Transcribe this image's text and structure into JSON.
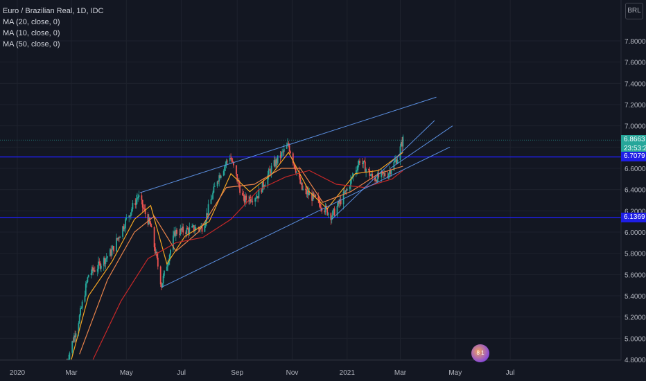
{
  "legend": {
    "title": "Euro / Brazilian Real, 1D, IDC",
    "ma20": "MA (20, close, 0)",
    "ma10": "MA (10, close, 0)",
    "ma50": "MA (50, close, 0)"
  },
  "currency_button": "BRL",
  "price_tags": {
    "last": "6.8663",
    "countdown": "23:53:23",
    "line1": "6.7079",
    "line2": "6.1369"
  },
  "logo_text": "8 1",
  "colors": {
    "background": "#131722",
    "up": "#26a69a",
    "down": "#ef5350",
    "ma_orange": "#f5a623",
    "ma_red": "#c62828",
    "trendline": "#5b8fe0",
    "hline": "#1e1ee6",
    "last_price": "#26a69a"
  },
  "chart_data": {
    "type": "candlestick",
    "yaxis_ticks": [
      "7.8000",
      "7.6000",
      "7.4000",
      "7.2000",
      "7.0000",
      "6.8000",
      "6.6000",
      "6.4000",
      "6.2000",
      "6.0000",
      "5.8000",
      "5.6000",
      "5.4000",
      "5.2000",
      "5.0000",
      "4.8000"
    ],
    "xaxis_ticks": [
      "2020",
      "Mar",
      "May",
      "Jul",
      "Sep",
      "Nov",
      "2021",
      "Mar",
      "May",
      "Jul"
    ],
    "ylim": [
      4.8,
      7.9
    ],
    "horizontal_lines": [
      6.7079,
      6.1369
    ],
    "last_price": 6.8663,
    "close_path": [
      {
        "date": "2020-02-25",
        "value": 4.78
      },
      {
        "date": "2020-03-10",
        "value": 5.2
      },
      {
        "date": "2020-03-20",
        "value": 5.6
      },
      {
        "date": "2020-03-31",
        "value": 5.68
      },
      {
        "date": "2020-04-15",
        "value": 5.82
      },
      {
        "date": "2020-04-30",
        "value": 6.1
      },
      {
        "date": "2020-05-14",
        "value": 6.34
      },
      {
        "date": "2020-05-28",
        "value": 6.05
      },
      {
        "date": "2020-06-09",
        "value": 5.5
      },
      {
        "date": "2020-06-24",
        "value": 6.0
      },
      {
        "date": "2020-07-10",
        "value": 6.02
      },
      {
        "date": "2020-07-25",
        "value": 6.05
      },
      {
        "date": "2020-08-10",
        "value": 6.5
      },
      {
        "date": "2020-08-24",
        "value": 6.72
      },
      {
        "date": "2020-09-08",
        "value": 6.3
      },
      {
        "date": "2020-09-24",
        "value": 6.35
      },
      {
        "date": "2020-10-09",
        "value": 6.6
      },
      {
        "date": "2020-10-28",
        "value": 6.82
      },
      {
        "date": "2020-11-12",
        "value": 6.4
      },
      {
        "date": "2020-11-28",
        "value": 6.3
      },
      {
        "date": "2020-12-15",
        "value": 6.15
      },
      {
        "date": "2021-01-01",
        "value": 6.4
      },
      {
        "date": "2021-01-15",
        "value": 6.68
      },
      {
        "date": "2021-01-30",
        "value": 6.5
      },
      {
        "date": "2021-02-15",
        "value": 6.55
      },
      {
        "date": "2021-02-26",
        "value": 6.7
      },
      {
        "date": "2021-03-04",
        "value": 6.87
      }
    ],
    "ma_series": [
      {
        "legend": "MA (10, close, 0)",
        "color": "#f5a623",
        "values": [
          {
            "date": "2020-03-01",
            "value": 4.8
          },
          {
            "date": "2020-03-20",
            "value": 5.4
          },
          {
            "date": "2020-04-15",
            "value": 5.72
          },
          {
            "date": "2020-05-10",
            "value": 6.12
          },
          {
            "date": "2020-05-28",
            "value": 6.25
          },
          {
            "date": "2020-06-15",
            "value": 5.7
          },
          {
            "date": "2020-07-05",
            "value": 5.96
          },
          {
            "date": "2020-08-01",
            "value": 6.1
          },
          {
            "date": "2020-08-25",
            "value": 6.55
          },
          {
            "date": "2020-09-15",
            "value": 6.38
          },
          {
            "date": "2020-10-10",
            "value": 6.55
          },
          {
            "date": "2020-10-28",
            "value": 6.75
          },
          {
            "date": "2020-11-20",
            "value": 6.38
          },
          {
            "date": "2020-12-10",
            "value": 6.22
          },
          {
            "date": "2021-01-10",
            "value": 6.55
          },
          {
            "date": "2021-02-05",
            "value": 6.58
          },
          {
            "date": "2021-03-04",
            "value": 6.75
          }
        ]
      },
      {
        "legend": "MA (20, close, 0)",
        "color": "#e8834a",
        "values": [
          {
            "date": "2020-03-10",
            "value": 4.85
          },
          {
            "date": "2020-04-10",
            "value": 5.55
          },
          {
            "date": "2020-05-10",
            "value": 6.0
          },
          {
            "date": "2020-06-01",
            "value": 6.15
          },
          {
            "date": "2020-06-25",
            "value": 5.82
          },
          {
            "date": "2020-07-20",
            "value": 6.0
          },
          {
            "date": "2020-08-20",
            "value": 6.42
          },
          {
            "date": "2020-09-20",
            "value": 6.45
          },
          {
            "date": "2020-10-20",
            "value": 6.6
          },
          {
            "date": "2020-11-10",
            "value": 6.6
          },
          {
            "date": "2020-12-05",
            "value": 6.28
          },
          {
            "date": "2021-01-05",
            "value": 6.38
          },
          {
            "date": "2021-02-05",
            "value": 6.55
          },
          {
            "date": "2021-03-04",
            "value": 6.62
          }
        ]
      },
      {
        "legend": "MA (50, close, 0)",
        "color": "#c62828",
        "values": [
          {
            "date": "2020-03-25",
            "value": 4.8
          },
          {
            "date": "2020-04-25",
            "value": 5.35
          },
          {
            "date": "2020-05-25",
            "value": 5.75
          },
          {
            "date": "2020-06-25",
            "value": 5.9
          },
          {
            "date": "2020-07-25",
            "value": 5.95
          },
          {
            "date": "2020-08-25",
            "value": 6.12
          },
          {
            "date": "2020-09-25",
            "value": 6.4
          },
          {
            "date": "2020-10-25",
            "value": 6.52
          },
          {
            "date": "2020-11-20",
            "value": 6.58
          },
          {
            "date": "2020-12-20",
            "value": 6.45
          },
          {
            "date": "2021-01-20",
            "value": 6.42
          },
          {
            "date": "2021-02-20",
            "value": 6.5
          },
          {
            "date": "2021-03-04",
            "value": 6.58
          }
        ]
      }
    ],
    "trendlines": [
      {
        "from": {
          "date": "2020-05-16",
          "value": 6.37
        },
        "to": {
          "date": "2021-04-10",
          "value": 7.27
        }
      },
      {
        "from": {
          "date": "2020-06-09",
          "value": 5.48
        },
        "to": {
          "date": "2021-04-25",
          "value": 6.8
        }
      },
      {
        "from": {
          "date": "2020-12-15",
          "value": 6.12
        },
        "to": {
          "date": "2021-04-08",
          "value": 7.05
        }
      },
      {
        "from": {
          "date": "2021-02-18",
          "value": 6.6
        },
        "to": {
          "date": "2021-04-28",
          "value": 7.0
        }
      }
    ]
  }
}
